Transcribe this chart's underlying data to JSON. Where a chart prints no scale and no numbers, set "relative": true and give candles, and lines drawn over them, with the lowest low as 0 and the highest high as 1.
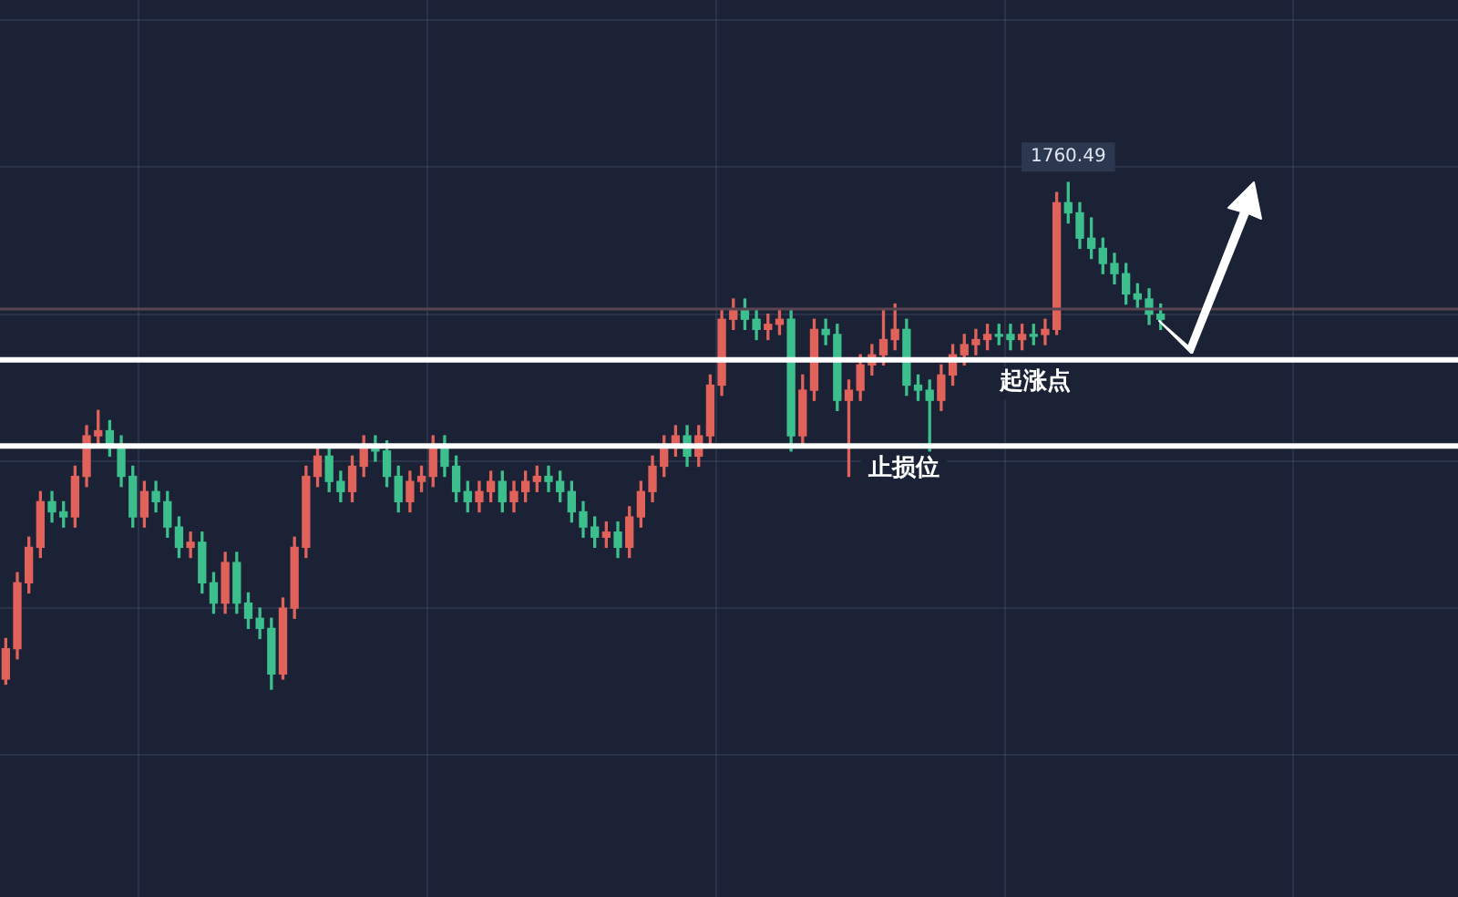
{
  "chart_data": {
    "type": "candlestick",
    "relative": true,
    "grid": true,
    "legend": false,
    "categories": [
      null,
      null,
      null,
      null,
      null,
      null,
      null,
      null,
      null,
      null,
      null,
      null,
      null,
      null,
      null,
      null,
      null,
      null,
      null,
      null,
      null,
      null,
      null,
      null,
      null,
      null,
      null,
      null,
      null,
      null,
      null,
      null,
      null,
      null,
      null,
      null,
      null,
      null,
      null,
      null,
      null,
      null,
      null,
      null,
      null,
      null,
      null,
      null,
      null,
      null,
      null,
      null,
      null,
      null,
      null,
      null,
      null,
      null,
      null,
      null,
      null,
      null,
      null,
      null,
      null,
      null,
      null,
      null,
      null,
      null,
      null,
      null,
      null,
      null,
      null,
      null,
      null,
      null,
      null,
      null,
      null,
      null,
      null,
      null,
      null,
      null,
      null,
      null,
      null,
      null,
      null,
      null,
      null,
      null,
      null,
      null,
      null,
      null,
      null,
      null,
      null
    ],
    "ohlc": [
      [
        0.02,
        0.1,
        0.01,
        0.08
      ],
      [
        0.08,
        0.23,
        0.06,
        0.21
      ],
      [
        0.21,
        0.3,
        0.19,
        0.28
      ],
      [
        0.28,
        0.39,
        0.26,
        0.37
      ],
      [
        0.37,
        0.39,
        0.33,
        0.35
      ],
      [
        0.35,
        0.37,
        0.32,
        0.34
      ],
      [
        0.34,
        0.44,
        0.32,
        0.42
      ],
      [
        0.42,
        0.52,
        0.4,
        0.5
      ],
      [
        0.5,
        0.55,
        0.48,
        0.51
      ],
      [
        0.51,
        0.53,
        0.46,
        0.48
      ],
      [
        0.48,
        0.5,
        0.4,
        0.42
      ],
      [
        0.42,
        0.44,
        0.32,
        0.34
      ],
      [
        0.34,
        0.41,
        0.32,
        0.39
      ],
      [
        0.39,
        0.41,
        0.35,
        0.37
      ],
      [
        0.37,
        0.39,
        0.3,
        0.32
      ],
      [
        0.32,
        0.34,
        0.26,
        0.28
      ],
      [
        0.28,
        0.31,
        0.26,
        0.29
      ],
      [
        0.29,
        0.31,
        0.19,
        0.21
      ],
      [
        0.21,
        0.23,
        0.15,
        0.17
      ],
      [
        0.17,
        0.27,
        0.15,
        0.25
      ],
      [
        0.25,
        0.27,
        0.15,
        0.17
      ],
      [
        0.17,
        0.19,
        0.12,
        0.14
      ],
      [
        0.14,
        0.16,
        0.1,
        0.12
      ],
      [
        0.12,
        0.14,
        0.0,
        0.03
      ],
      [
        0.03,
        0.18,
        0.02,
        0.16
      ],
      [
        0.16,
        0.3,
        0.14,
        0.28
      ],
      [
        0.28,
        0.44,
        0.26,
        0.42
      ],
      [
        0.42,
        0.48,
        0.4,
        0.46
      ],
      [
        0.46,
        0.48,
        0.39,
        0.41
      ],
      [
        0.41,
        0.43,
        0.37,
        0.39
      ],
      [
        0.39,
        0.46,
        0.37,
        0.44
      ],
      [
        0.44,
        0.5,
        0.42,
        0.48
      ],
      [
        0.48,
        0.5,
        0.45,
        0.47
      ],
      [
        0.47,
        0.49,
        0.4,
        0.42
      ],
      [
        0.42,
        0.44,
        0.35,
        0.37
      ],
      [
        0.37,
        0.43,
        0.35,
        0.41
      ],
      [
        0.41,
        0.44,
        0.39,
        0.42
      ],
      [
        0.42,
        0.5,
        0.4,
        0.48
      ],
      [
        0.48,
        0.5,
        0.42,
        0.44
      ],
      [
        0.44,
        0.46,
        0.37,
        0.39
      ],
      [
        0.39,
        0.41,
        0.35,
        0.37
      ],
      [
        0.37,
        0.41,
        0.35,
        0.39
      ],
      [
        0.39,
        0.43,
        0.37,
        0.41
      ],
      [
        0.41,
        0.43,
        0.35,
        0.37
      ],
      [
        0.37,
        0.41,
        0.35,
        0.39
      ],
      [
        0.39,
        0.43,
        0.37,
        0.41
      ],
      [
        0.41,
        0.44,
        0.39,
        0.42
      ],
      [
        0.42,
        0.44,
        0.39,
        0.41
      ],
      [
        0.41,
        0.43,
        0.37,
        0.39
      ],
      [
        0.39,
        0.41,
        0.33,
        0.35
      ],
      [
        0.35,
        0.37,
        0.3,
        0.32
      ],
      [
        0.32,
        0.34,
        0.28,
        0.3
      ],
      [
        0.3,
        0.33,
        0.28,
        0.31
      ],
      [
        0.31,
        0.33,
        0.26,
        0.28
      ],
      [
        0.28,
        0.36,
        0.26,
        0.34
      ],
      [
        0.34,
        0.41,
        0.32,
        0.39
      ],
      [
        0.39,
        0.46,
        0.37,
        0.44
      ],
      [
        0.44,
        0.5,
        0.42,
        0.48
      ],
      [
        0.48,
        0.52,
        0.46,
        0.5
      ],
      [
        0.5,
        0.52,
        0.44,
        0.46
      ],
      [
        0.46,
        0.52,
        0.44,
        0.5
      ],
      [
        0.5,
        0.62,
        0.48,
        0.6
      ],
      [
        0.6,
        0.75,
        0.58,
        0.73
      ],
      [
        0.73,
        0.77,
        0.71,
        0.75
      ],
      [
        0.75,
        0.77,
        0.71,
        0.73
      ],
      [
        0.73,
        0.75,
        0.69,
        0.71
      ],
      [
        0.71,
        0.74,
        0.69,
        0.72
      ],
      [
        0.72,
        0.75,
        0.7,
        0.73
      ],
      [
        0.73,
        0.75,
        0.47,
        0.5
      ],
      [
        0.5,
        0.62,
        0.48,
        0.59
      ],
      [
        0.59,
        0.73,
        0.57,
        0.71
      ],
      [
        0.71,
        0.73,
        0.68,
        0.7
      ],
      [
        0.7,
        0.72,
        0.55,
        0.57
      ],
      [
        0.57,
        0.61,
        0.42,
        0.59
      ],
      [
        0.59,
        0.66,
        0.57,
        0.64
      ],
      [
        0.64,
        0.68,
        0.62,
        0.66
      ],
      [
        0.66,
        0.75,
        0.64,
        0.69
      ],
      [
        0.69,
        0.76,
        0.67,
        0.71
      ],
      [
        0.71,
        0.73,
        0.58,
        0.6
      ],
      [
        0.6,
        0.62,
        0.57,
        0.59
      ],
      [
        0.59,
        0.61,
        0.47,
        0.57
      ],
      [
        0.57,
        0.64,
        0.55,
        0.62
      ],
      [
        0.62,
        0.68,
        0.6,
        0.66
      ],
      [
        0.66,
        0.7,
        0.64,
        0.68
      ],
      [
        0.68,
        0.71,
        0.66,
        0.69
      ],
      [
        0.69,
        0.72,
        0.67,
        0.7
      ],
      [
        0.7,
        0.72,
        0.68,
        0.7
      ],
      [
        0.7,
        0.72,
        0.67,
        0.69
      ],
      [
        0.69,
        0.72,
        0.67,
        0.7
      ],
      [
        0.7,
        0.72,
        0.68,
        0.7
      ],
      [
        0.7,
        0.73,
        0.68,
        0.71
      ],
      [
        0.71,
        0.98,
        0.7,
        0.96
      ],
      [
        0.96,
        1.0,
        0.92,
        0.94
      ],
      [
        0.94,
        0.96,
        0.87,
        0.89
      ],
      [
        0.89,
        0.93,
        0.85,
        0.87
      ],
      [
        0.87,
        0.89,
        0.82,
        0.84
      ],
      [
        0.84,
        0.86,
        0.8,
        0.82
      ],
      [
        0.82,
        0.84,
        0.76,
        0.78
      ],
      [
        0.78,
        0.8,
        0.75,
        0.77
      ],
      [
        0.77,
        0.79,
        0.72,
        0.74
      ],
      [
        0.74,
        0.76,
        0.71,
        0.73
      ]
    ],
    "colors": [
      "#e0625a",
      "#e0625a",
      "#e0625a",
      "#e0625a",
      "#3cbf8c",
      "#3cbf8c",
      "#e0625a",
      "#e0625a",
      "#e0625a",
      "#3cbf8c",
      "#3cbf8c",
      "#3cbf8c",
      "#e0625a",
      "#3cbf8c",
      "#3cbf8c",
      "#3cbf8c",
      "#e0625a",
      "#3cbf8c",
      "#3cbf8c",
      "#e0625a",
      "#3cbf8c",
      "#3cbf8c",
      "#3cbf8c",
      "#3cbf8c",
      "#e0625a",
      "#e0625a",
      "#e0625a",
      "#e0625a",
      "#3cbf8c",
      "#3cbf8c",
      "#e0625a",
      "#e0625a",
      "#3cbf8c",
      "#3cbf8c",
      "#3cbf8c",
      "#e0625a",
      "#e0625a",
      "#e0625a",
      "#3cbf8c",
      "#3cbf8c",
      "#3cbf8c",
      "#e0625a",
      "#e0625a",
      "#3cbf8c",
      "#e0625a",
      "#e0625a",
      "#e0625a",
      "#3cbf8c",
      "#3cbf8c",
      "#3cbf8c",
      "#3cbf8c",
      "#3cbf8c",
      "#e0625a",
      "#3cbf8c",
      "#e0625a",
      "#e0625a",
      "#e0625a",
      "#e0625a",
      "#e0625a",
      "#3cbf8c",
      "#e0625a",
      "#e0625a",
      "#e0625a",
      "#e0625a",
      "#3cbf8c",
      "#3cbf8c",
      "#e0625a",
      "#e0625a",
      "#3cbf8c",
      "#e0625a",
      "#e0625a",
      "#3cbf8c",
      "#3cbf8c",
      "#e0625a",
      "#e0625a",
      "#e0625a",
      "#e0625a",
      "#e0625a",
      "#3cbf8c",
      "#3cbf8c",
      "#3cbf8c",
      "#e0625a",
      "#e0625a",
      "#e0625a",
      "#e0625a",
      "#e0625a",
      "#3cbf8c",
      "#3cbf8c",
      "#e0625a",
      "#3cbf8c",
      "#e0625a",
      "#e0625a",
      "#3cbf8c",
      "#3cbf8c",
      "#3cbf8c",
      "#3cbf8c",
      "#3cbf8c",
      "#3cbf8c",
      "#3cbf8c",
      "#3cbf8c",
      "#3cbf8c"
    ],
    "annotations": [
      {
        "text": "1760.49",
        "y": 1.0
      }
    ],
    "ref_lines": [
      {
        "axis": "y",
        "value": 0.48,
        "label": "止损位",
        "color": "#ffffff"
      },
      {
        "axis": "y",
        "value": 0.65,
        "label": "起涨点",
        "color": "#ffffff"
      },
      {
        "axis": "y",
        "value": 0.75,
        "color": "#5a4452"
      }
    ]
  }
}
